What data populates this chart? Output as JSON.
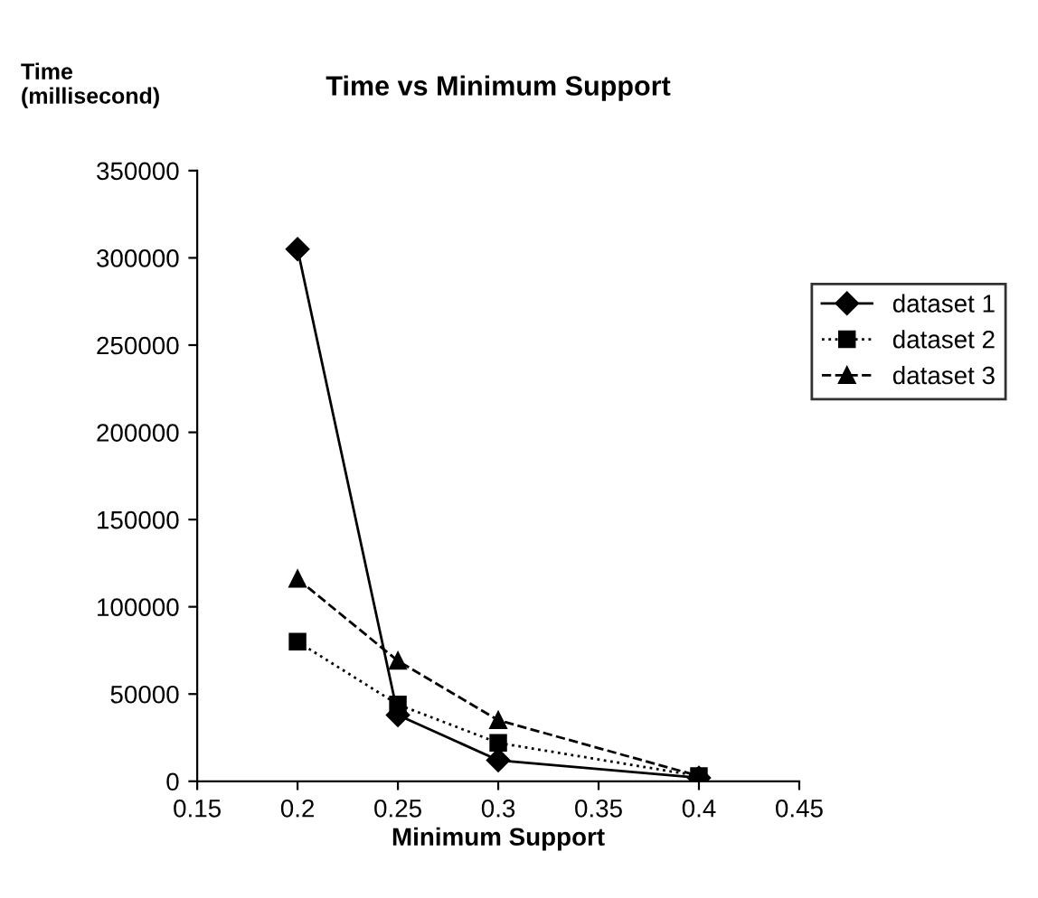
{
  "chart_data": {
    "type": "line",
    "title": "Time vs Minimum Support",
    "xlabel": "Minimum Support",
    "ylabel": "Time\n(millisecond)",
    "x": [
      0.2,
      0.25,
      0.3,
      0.4
    ],
    "series": [
      {
        "name": "dataset 1",
        "color": "#000000",
        "values": [
          305000,
          38000,
          12000,
          2000
        ],
        "marker": "diamond",
        "line_style": "solid"
      },
      {
        "name": "dataset 2",
        "color": "#000000",
        "values": [
          80000,
          44000,
          22000,
          3000
        ],
        "marker": "square",
        "line_style": "dotted"
      },
      {
        "name": "dataset 3",
        "color": "#000000",
        "values": [
          116000,
          69000,
          35000,
          3000
        ],
        "marker": "triangle",
        "line_style": "dashed"
      }
    ],
    "xlim": [
      0.15,
      0.45
    ],
    "xticks": [
      0.15,
      0.2,
      0.25,
      0.3,
      0.35,
      0.4,
      0.45
    ],
    "ylim": [
      0,
      350000
    ],
    "yticks": [
      0,
      50000,
      100000,
      150000,
      200000,
      250000,
      300000,
      350000
    ],
    "grid": false,
    "legend": "right"
  }
}
